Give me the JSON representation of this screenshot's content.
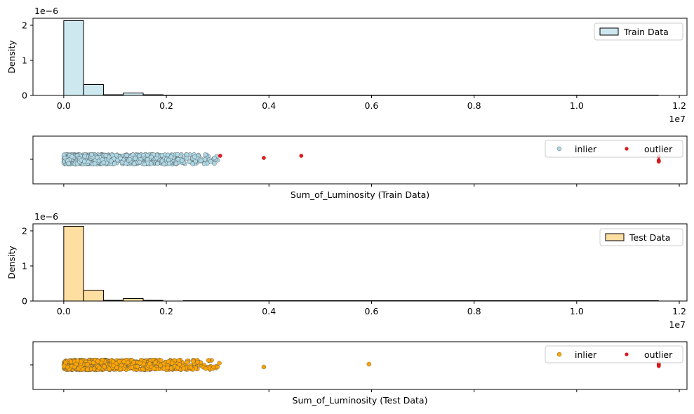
{
  "chart_data": [
    {
      "type": "histogram",
      "ylabel": "Density",
      "y_offset_label": "1e−6",
      "x_offset_label": "1e7",
      "xlim": [
        -0.06,
        1.215
      ],
      "ylim": [
        0,
        2.2
      ],
      "xticks": [
        0.0,
        0.2,
        0.4,
        0.6,
        0.8,
        1.0,
        1.2
      ],
      "xtick_labels": [
        "0.0",
        "0.2",
        "0.4",
        "0.6",
        "0.8",
        "1.0",
        "1.2"
      ],
      "yticks": [
        0,
        1,
        2
      ],
      "ytick_labels": [
        "0",
        "1",
        "2"
      ],
      "bin_width": 0.0387,
      "bin_starts": [
        0.0,
        0.0387,
        0.0774,
        0.1161,
        0.1548,
        0.1935,
        0.2322
      ],
      "values": [
        2.13,
        0.31,
        0.02,
        0.07,
        0.02,
        0.01,
        0.0
      ],
      "flat_until": 1.16,
      "color": "#add8e6",
      "legend": {
        "label": "Train Data",
        "position": "upper right"
      }
    },
    {
      "type": "strip",
      "xlabel": "Sum_of_Luminosity (Train Data)",
      "xlim": [
        -0.06,
        1.215
      ],
      "xticks": [
        0.0,
        0.2,
        0.4,
        0.6,
        0.8,
        1.0,
        1.2
      ],
      "inlier_color": "#add8e6",
      "outlier_color": "#e31a1c",
      "inlier_range": [
        0.0,
        0.305
      ],
      "outliers": [
        0.305,
        0.39,
        0.463,
        1.16,
        1.16,
        1.16,
        1.16
      ],
      "legend": {
        "labels": [
          "inlier",
          "outlier"
        ],
        "position": "upper right"
      }
    },
    {
      "type": "histogram",
      "ylabel": "Density",
      "y_offset_label": "1e−6",
      "x_offset_label": "1e7",
      "xlim": [
        -0.06,
        1.215
      ],
      "ylim": [
        0,
        2.2
      ],
      "xticks": [
        0.0,
        0.2,
        0.4,
        0.6,
        0.8,
        1.0,
        1.2
      ],
      "xtick_labels": [
        "0.0",
        "0.2",
        "0.4",
        "0.6",
        "0.8",
        "1.0",
        "1.2"
      ],
      "yticks": [
        0,
        1,
        2
      ],
      "ytick_labels": [
        "0",
        "1",
        "2"
      ],
      "bin_width": 0.0387,
      "bin_starts": [
        0.0,
        0.0387,
        0.0774,
        0.1161,
        0.1548,
        0.1935,
        0.2322
      ],
      "values": [
        2.13,
        0.31,
        0.02,
        0.07,
        0.02,
        0.0,
        0.0
      ],
      "flat_until": 1.16,
      "color": "#ffc864",
      "legend": {
        "label": "Test Data",
        "position": "upper right"
      }
    },
    {
      "type": "strip",
      "xlabel": "Sum_of_Luminosity (Test Data)",
      "xlim": [
        -0.06,
        1.215
      ],
      "xticks": [
        0.0,
        0.2,
        0.4,
        0.6,
        0.8,
        1.0,
        1.2
      ],
      "inlier_color": "#ffa500",
      "outlier_color": "#e31a1c",
      "inlier_range": [
        0.0,
        0.305
      ],
      "extra_inliers": [
        0.39,
        0.595
      ],
      "outliers": [
        1.16,
        1.16,
        1.16,
        1.16
      ],
      "legend": {
        "labels": [
          "inlier",
          "outlier"
        ],
        "position": "upper right"
      }
    }
  ]
}
